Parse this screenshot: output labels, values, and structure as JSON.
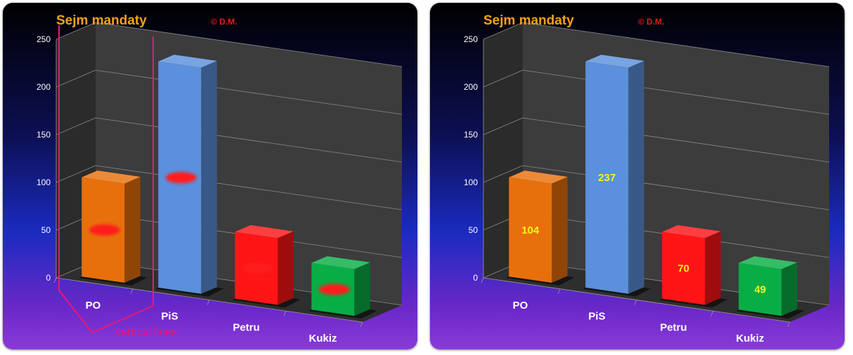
{
  "chart_data": [
    {
      "type": "bar",
      "title": "Sejm mandaty",
      "copyright": "© D.M.",
      "categories": [
        "PO",
        "PiS",
        "Petru",
        "Kukiz"
      ],
      "values": [
        104,
        237,
        70,
        49
      ],
      "ylim": [
        0,
        250
      ],
      "yticks": [
        0,
        50,
        100,
        150,
        200,
        250
      ],
      "grid": true,
      "colors": [
        "#e8700c",
        "#5b90dc",
        "#ff1515",
        "#09ad45"
      ],
      "data_labels_obscured": true,
      "annotation": "vertical lines"
    },
    {
      "type": "bar",
      "title": "Sejm mandaty",
      "copyright": "© D.M.",
      "categories": [
        "PO",
        "PiS",
        "Petru",
        "Kukiz"
      ],
      "values": [
        104,
        237,
        70,
        49
      ],
      "data_labels": [
        "104",
        "237",
        "70",
        "49"
      ],
      "ylim": [
        0,
        250
      ],
      "yticks": [
        0,
        50,
        100,
        150,
        200,
        250
      ],
      "grid": true,
      "colors": [
        "#e8700c",
        "#5b90dc",
        "#ff1515",
        "#09ad45"
      ]
    }
  ]
}
